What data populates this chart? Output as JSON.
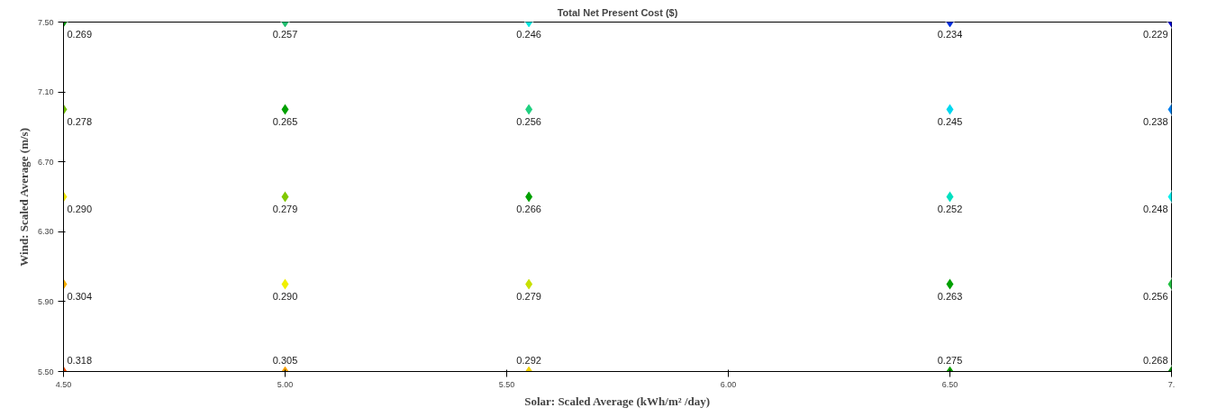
{
  "chart_data": {
    "type": "scatter",
    "title": "Total Net Present Cost ($)",
    "xlabel": "Solar: Scaled Average (kWh/m² /day)",
    "ylabel": "Wind: Scaled Average (m/s)",
    "x": [
      4.5,
      5.0,
      5.55,
      6.5,
      7.0,
      4.5,
      5.0,
      5.55,
      6.5,
      7.0,
      4.5,
      5.0,
      5.55,
      6.5,
      7.0,
      4.5,
      5.0,
      5.55,
      6.5,
      7.0,
      4.5,
      5.0,
      5.55,
      6.5,
      7.0
    ],
    "values": [
      7.5,
      7.5,
      7.5,
      7.5,
      7.5,
      7.0,
      7.0,
      7.0,
      7.0,
      7.0,
      6.5,
      6.5,
      6.5,
      6.5,
      6.5,
      6.0,
      6.0,
      6.0,
      6.0,
      6.0,
      5.5,
      5.5,
      5.5,
      5.5,
      5.5
    ],
    "colors": [
      "#0a9a10",
      "#20c070",
      "#00e8e0",
      "#0030e0",
      "#0000e0",
      "#70c000",
      "#00a000",
      "#20d080",
      "#00d8f0",
      "#0080f0",
      "#f0e800",
      "#80c800",
      "#00a000",
      "#00e0c0",
      "#00f0f0",
      "#f8b000",
      "#f0f000",
      "#c8e000",
      "#00a000",
      "#20c040",
      "#f04800",
      "#f8a000",
      "#f0d000",
      "#10a000",
      "#009000"
    ],
    "annotations": [
      {
        "text": "0.269",
        "x": 4.5,
        "y": 7.5
      },
      {
        "text": "0.257",
        "x": 5.0,
        "y": 7.5
      },
      {
        "text": "0.246",
        "x": 5.55,
        "y": 7.5
      },
      {
        "text": "0.234",
        "x": 6.5,
        "y": 7.5
      },
      {
        "text": "0.229",
        "x": 7.0,
        "y": 7.5
      },
      {
        "text": "0.278",
        "x": 4.5,
        "y": 7.0
      },
      {
        "text": "0.265",
        "x": 5.0,
        "y": 7.0
      },
      {
        "text": "0.256",
        "x": 5.55,
        "y": 7.0
      },
      {
        "text": "0.245",
        "x": 6.5,
        "y": 7.0
      },
      {
        "text": "0.238",
        "x": 7.0,
        "y": 7.0
      },
      {
        "text": "0.290",
        "x": 4.5,
        "y": 6.5
      },
      {
        "text": "0.279",
        "x": 5.0,
        "y": 6.5
      },
      {
        "text": "0.266",
        "x": 5.55,
        "y": 6.5
      },
      {
        "text": "0.252",
        "x": 6.5,
        "y": 6.5
      },
      {
        "text": "0.248",
        "x": 7.0,
        "y": 6.5
      },
      {
        "text": "0.304",
        "x": 4.5,
        "y": 6.0
      },
      {
        "text": "0.290",
        "x": 5.0,
        "y": 6.0
      },
      {
        "text": "0.279",
        "x": 5.55,
        "y": 6.0
      },
      {
        "text": "0.263",
        "x": 6.5,
        "y": 6.0
      },
      {
        "text": "0.256",
        "x": 7.0,
        "y": 6.0
      },
      {
        "text": "0.318",
        "x": 4.5,
        "y": 5.5
      },
      {
        "text": "0.305",
        "x": 5.0,
        "y": 5.5
      },
      {
        "text": "0.292",
        "x": 5.55,
        "y": 5.5
      },
      {
        "text": "0.275",
        "x": 6.5,
        "y": 5.5
      },
      {
        "text": "0.268",
        "x": 7.0,
        "y": 5.5
      }
    ],
    "xlim": [
      4.5,
      7.0
    ],
    "ylim": [
      5.5,
      7.5
    ],
    "xticks": [
      {
        "value": 4.5,
        "label": "4.50"
      },
      {
        "value": 5.0,
        "label": "5.00"
      },
      {
        "value": 5.5,
        "label": "5.50"
      },
      {
        "value": 6.0,
        "label": "6.00"
      },
      {
        "value": 6.5,
        "label": "6.50"
      },
      {
        "value": 7.0,
        "label": "7."
      }
    ],
    "yticks": [
      {
        "value": 5.5,
        "label": "5.50"
      },
      {
        "value": 5.9,
        "label": "5.90"
      },
      {
        "value": 6.3,
        "label": "6.30"
      },
      {
        "value": 6.7,
        "label": "6.70"
      },
      {
        "value": 7.1,
        "label": "7.10"
      },
      {
        "value": 7.5,
        "label": "7.50"
      }
    ],
    "marker": "diamond",
    "grid": false
  }
}
